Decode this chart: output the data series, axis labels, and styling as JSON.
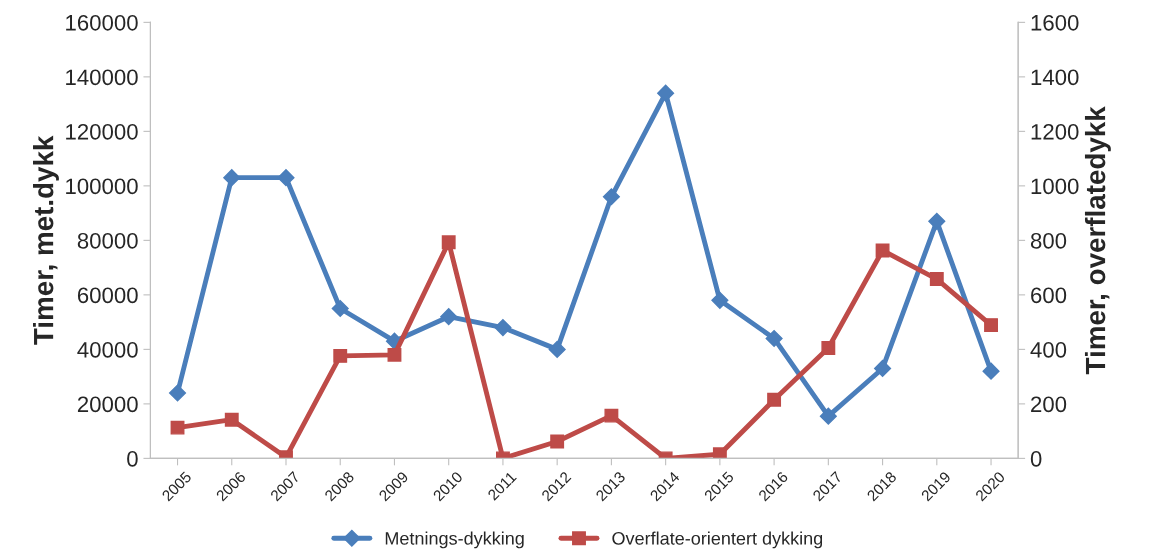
{
  "chart_data": {
    "type": "line",
    "ylabel": "Timer, met.dykk",
    "y2label": "Timer, overflatedykk",
    "categories": [
      "2005",
      "2006",
      "2007",
      "2008",
      "2009",
      "2010",
      "2011",
      "2012",
      "2013",
      "2014",
      "2015",
      "2016",
      "2017",
      "2018",
      "2019",
      "2020"
    ],
    "series": [
      {
        "name": "Metnings-dykking",
        "color": "#4a7ebb",
        "marker": "diamond",
        "values": [
          24000,
          103000,
          103000,
          55000,
          43000,
          52000,
          48000,
          40000,
          96000,
          134000,
          58000,
          44000,
          15500,
          33000,
          87000,
          32000
        ]
      },
      {
        "name": "Overflate-orientert dykking",
        "color": "#be4b48",
        "marker": "square",
        "axis": "y2",
        "values": [
          113,
          142,
          4,
          376,
          380,
          793,
          0,
          62,
          157,
          0,
          15,
          215,
          405,
          763,
          658,
          489
        ]
      }
    ],
    "ylim": [
      0,
      160000
    ],
    "yticks": [
      0,
      20000,
      40000,
      60000,
      80000,
      100000,
      120000,
      140000,
      160000
    ],
    "y2lim": [
      0,
      1600
    ],
    "y2ticks": [
      0,
      200,
      400,
      600,
      800,
      1000,
      1200,
      1400,
      1600
    ],
    "grid": false,
    "legend": "bottom"
  }
}
